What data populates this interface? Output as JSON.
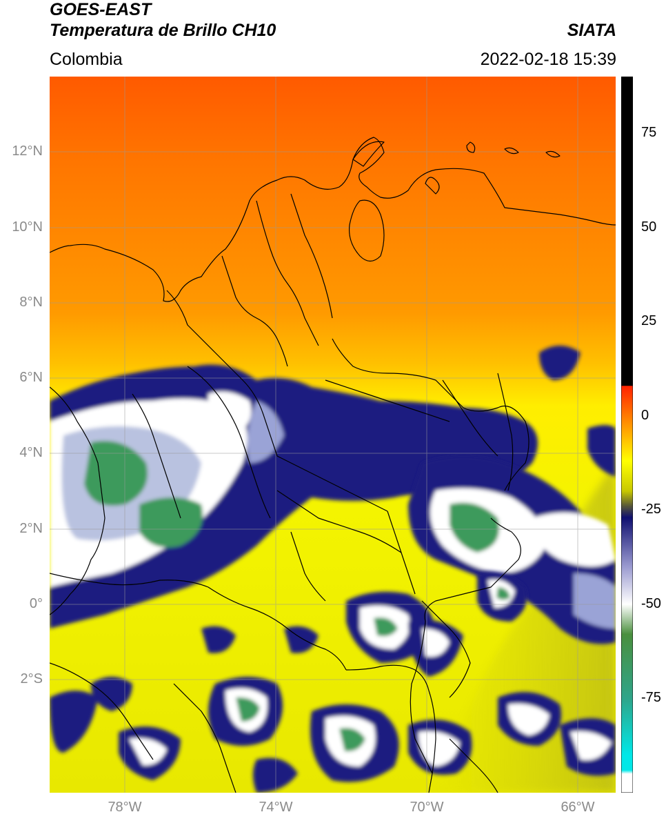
{
  "header": {
    "satellite": "GOES-EAST",
    "product": "Temperatura de Brillo CH10",
    "agency": "SIATA",
    "region": "Colombia",
    "timestamp": "2022-02-18 15:39"
  },
  "map": {
    "extent": {
      "lon_min": -80.5,
      "lon_max": -65.5,
      "lat_min": -5.0,
      "lat_max": 14.0
    },
    "lat_ticks": [
      {
        "value": 12,
        "label": "12°N"
      },
      {
        "value": 10,
        "label": "10°N"
      },
      {
        "value": 8,
        "label": "8°N"
      },
      {
        "value": 6,
        "label": "6°N"
      },
      {
        "value": 4,
        "label": "4°N"
      },
      {
        "value": 2,
        "label": "2°N"
      },
      {
        "value": 0,
        "label": "0°"
      },
      {
        "value": -2,
        "label": "2°S"
      }
    ],
    "lon_ticks": [
      {
        "value": -78,
        "label": "78°W"
      },
      {
        "value": -74,
        "label": "74°W"
      },
      {
        "value": -70,
        "label": "70°W"
      },
      {
        "value": -66,
        "label": "66°W"
      }
    ],
    "gridlines": true,
    "colors": {
      "warm_orange": "#ff9400",
      "hot_red": "#ff4a00",
      "yellow": "#f2f200",
      "olive": "#9b9b1f",
      "navy": "#1a1a7e",
      "white": "#ffffff",
      "green": "#3f9f5e",
      "border": "#000000"
    }
  },
  "colorbar": {
    "min": -100,
    "max": 90,
    "tick_labels": [
      {
        "value": 75,
        "label": "75"
      },
      {
        "value": 50,
        "label": "50"
      },
      {
        "value": 25,
        "label": "25"
      },
      {
        "value": 0,
        "label": "0"
      },
      {
        "value": -25,
        "label": "-25"
      },
      {
        "value": -50,
        "label": "-50"
      },
      {
        "value": -75,
        "label": "-75"
      }
    ],
    "stops": [
      {
        "value": 90,
        "color": "#000000"
      },
      {
        "value": 8,
        "color": "#000000"
      },
      {
        "value": 7.9,
        "color": "#ff2200"
      },
      {
        "value": 0,
        "color": "#ff7a00"
      },
      {
        "value": -12,
        "color": "#ffff00"
      },
      {
        "value": -20,
        "color": "#c8c800"
      },
      {
        "value": -24,
        "color": "#55553a"
      },
      {
        "value": -27,
        "color": "#101070"
      },
      {
        "value": -40,
        "color": "#9a9ad0"
      },
      {
        "value": -50,
        "color": "#ffffff"
      },
      {
        "value": -58,
        "color": "#4a8f3e"
      },
      {
        "value": -75,
        "color": "#2fa58a"
      },
      {
        "value": -90,
        "color": "#00e8e8"
      },
      {
        "value": -94,
        "color": "#00e8e8"
      },
      {
        "value": -95,
        "color": "#ffffff"
      },
      {
        "value": -100,
        "color": "#ffffff"
      }
    ]
  }
}
